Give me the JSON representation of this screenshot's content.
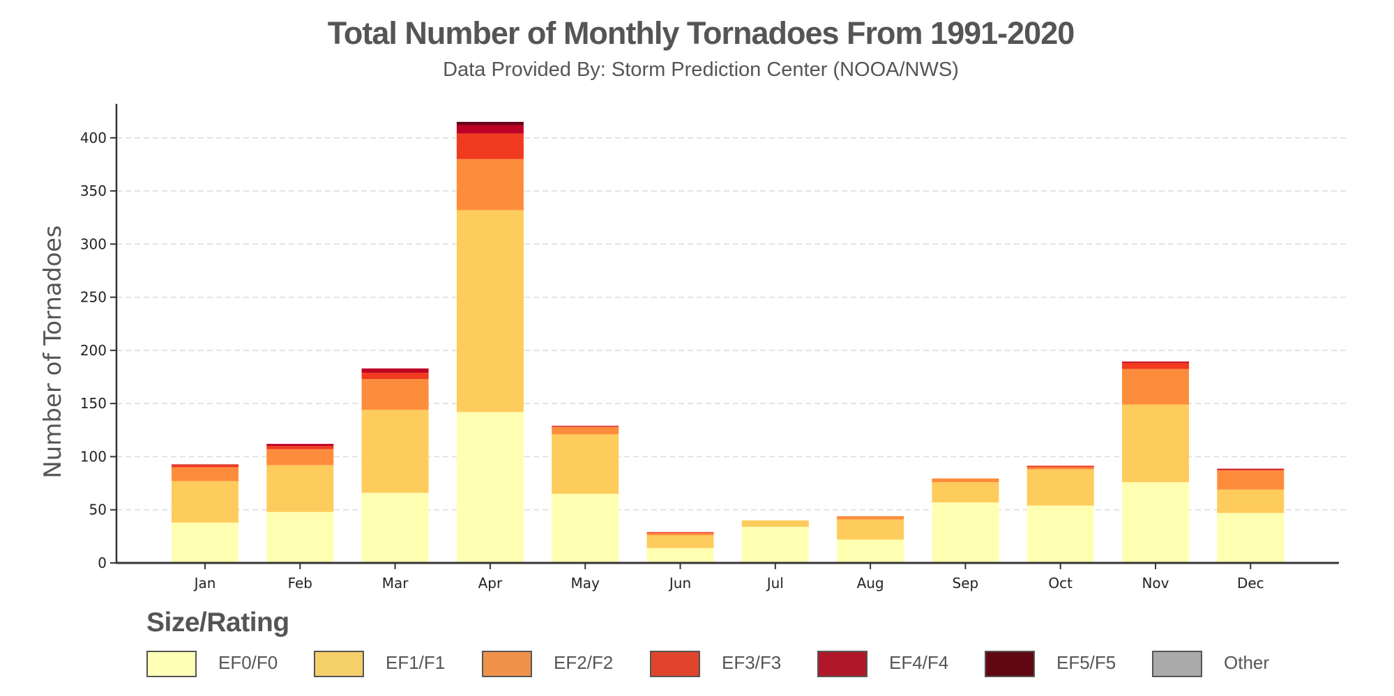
{
  "header": {
    "title": "Total Number of Monthly Tornadoes From 1991-2020",
    "subtitle": "Data Provided By: Storm Prediction Center (NOOA/NWS)"
  },
  "legend": {
    "title": "Size/Rating",
    "items": [
      {
        "label": "EF0/F0",
        "color": "#ffffb8"
      },
      {
        "label": "EF1/F1",
        "color": "#f5cf6a"
      },
      {
        "label": "EF2/F2",
        "color": "#f0924a"
      },
      {
        "label": "EF3/F3",
        "color": "#e0442a"
      },
      {
        "label": "EF4/F4",
        "color": "#b0182a"
      },
      {
        "label": "EF5/F5",
        "color": "#600812"
      },
      {
        "label": "Other",
        "color": "#aaaaaa"
      }
    ]
  },
  "chart_data": {
    "type": "bar",
    "stacked": true,
    "title": "Total Number of Monthly Tornadoes From 1991-2020",
    "subtitle": "Data Provided By: Storm Prediction Center (NOOA/NWS)",
    "xlabel": "",
    "ylabel": "Number of Tornadoes",
    "ylim": [
      0,
      432
    ],
    "yticks": [
      0,
      50,
      100,
      150,
      200,
      250,
      300,
      350,
      400
    ],
    "grid": "horizontal-dashed",
    "legend_title": "Size/Rating",
    "legend_position": "bottom",
    "categories": [
      "Jan",
      "Feb",
      "Mar",
      "Apr",
      "May",
      "Jun",
      "Jul",
      "Aug",
      "Sep",
      "Oct",
      "Nov",
      "Dec"
    ],
    "series": [
      {
        "name": "EF0/F0",
        "color": "#ffffb2",
        "values": [
          38,
          48,
          66,
          142,
          65,
          14,
          34,
          22,
          57,
          54,
          76,
          47
        ]
      },
      {
        "name": "EF1/F1",
        "color": "#fecc5c",
        "values": [
          39,
          44,
          78,
          190,
          56,
          12,
          6,
          19,
          19,
          34,
          73,
          22
        ]
      },
      {
        "name": "EF2/F2",
        "color": "#fd8d3c",
        "values": [
          13,
          15,
          29,
          48,
          7,
          2,
          0,
          3,
          3.5,
          2,
          33.5,
          18
        ]
      },
      {
        "name": "EF3/F3",
        "color": "#f03b20",
        "values": [
          2.5,
          3,
          6,
          24,
          0.5,
          1,
          0,
          0,
          0,
          1.5,
          6,
          1
        ]
      },
      {
        "name": "EF4/F4",
        "color": "#bd0026",
        "values": [
          0.3,
          2,
          4,
          8,
          0.5,
          0,
          0,
          0,
          0,
          0,
          1,
          0.7
        ]
      },
      {
        "name": "EF5/F5",
        "color": "#67001a",
        "values": [
          0,
          0,
          0,
          3,
          0,
          0,
          0,
          0,
          0,
          0,
          0,
          0
        ]
      },
      {
        "name": "Other",
        "color": "#aaaaaa",
        "values": [
          0,
          0,
          0,
          0,
          0,
          0,
          0,
          0,
          0,
          0,
          0,
          0
        ]
      }
    ]
  }
}
